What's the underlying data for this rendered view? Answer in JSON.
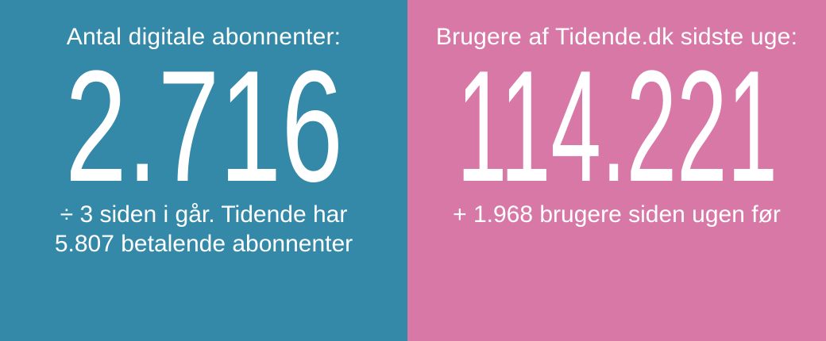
{
  "colors": {
    "left_panel_bg": "#3389a7",
    "right_panel_bg": "#d878a7",
    "text": "#ffffff"
  },
  "panels": {
    "left": {
      "title": "Antal digitale abonnenter:",
      "value": "2.716",
      "note_line1": "÷ 3 siden i går. Tidende har",
      "note_line2": "5.807 betalende abonnenter"
    },
    "right": {
      "title": "Brugere af Tidende.dk sidste uge:",
      "value": "114.221",
      "note_line1": "+ 1.968 brugere siden ugen før"
    }
  }
}
